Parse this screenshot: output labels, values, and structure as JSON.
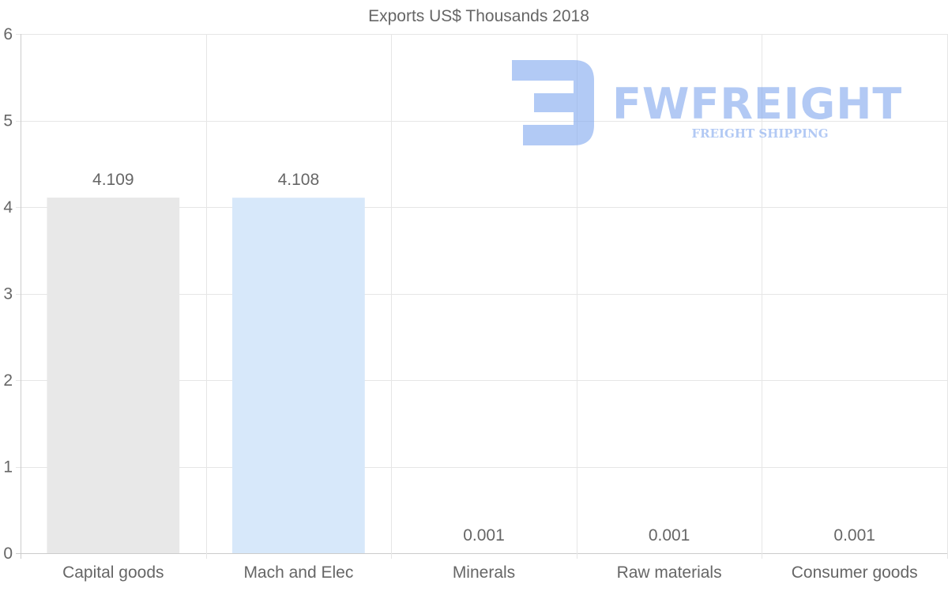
{
  "chart_data": {
    "type": "bar",
    "title": "Exports US$ Thousands 2018",
    "categories": [
      "Capital goods",
      "Mach and Elec",
      "Minerals",
      "Raw materials",
      "Consumer goods"
    ],
    "values": [
      4.109,
      4.108,
      0.001,
      0.001,
      0.001
    ],
    "data_labels": [
      "4.109",
      "4.108",
      "0.001",
      "0.001",
      "0.001"
    ],
    "bar_colors": [
      "#e8e8e8",
      "#d7e8fa",
      "#e8e8e8",
      "#e8e8e8",
      "#e8e8e8"
    ],
    "ylim": [
      0,
      6
    ],
    "yticks": [
      "0",
      "1",
      "2",
      "3",
      "4",
      "5",
      "6"
    ],
    "xlabel": "",
    "ylabel": "",
    "grid": true,
    "legend": "none"
  },
  "watermark": {
    "brand": "FWFREIGHT",
    "tagline": "FREIGHT SHIPPING",
    "color": "#7fa6ee"
  }
}
